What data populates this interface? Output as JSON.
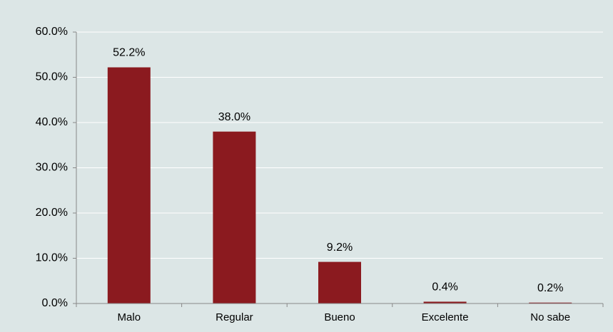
{
  "chart_data": {
    "type": "bar",
    "categories": [
      "Malo",
      "Regular",
      "Bueno",
      "Excelente",
      "No sabe"
    ],
    "values": [
      52.2,
      38.0,
      9.2,
      0.4,
      0.2
    ],
    "value_labels": [
      "52.2%",
      "38.0%",
      "9.2%",
      "0.4%",
      "0.2%"
    ],
    "color": "#8b1a1f",
    "ylim": [
      0,
      60
    ],
    "yticks": [
      {
        "value": 0,
        "label": "0.0%"
      },
      {
        "value": 10,
        "label": "10.0%"
      },
      {
        "value": 20,
        "label": "20.0%"
      },
      {
        "value": 30,
        "label": "30.0%"
      },
      {
        "value": 40,
        "label": "40.0%"
      },
      {
        "value": 50,
        "label": "50.0%"
      },
      {
        "value": 60,
        "label": "60.0%"
      }
    ],
    "grid": true
  }
}
